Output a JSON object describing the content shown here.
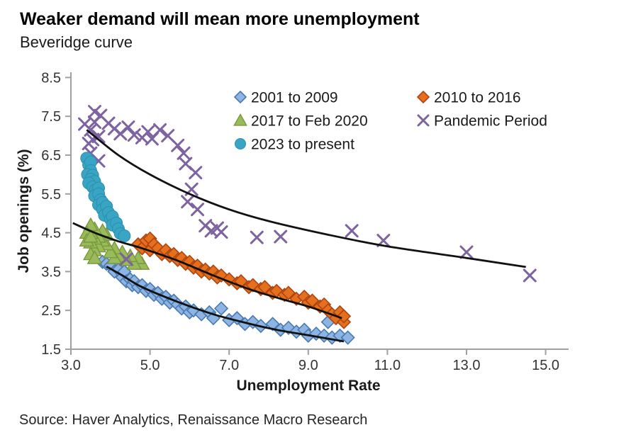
{
  "page": {
    "title": "Weaker demand will mean more unemployment",
    "subtitle": "Beveridge curve",
    "source": "Source: Haver Analytics, Renaissance Macro Research"
  },
  "chart_data": {
    "type": "scatter",
    "title": "Weaker demand will mean more unemployment",
    "subtitle": "Beveridge curve",
    "xlabel": "Unemployment Rate",
    "ylabel": "Job openings (%)",
    "xlim": [
      3.0,
      15.0
    ],
    "ylim": [
      1.5,
      8.5
    ],
    "x_ticks": [
      3,
      5,
      7,
      9,
      11,
      13,
      15
    ],
    "x_tick_labels": [
      "3.0",
      "5.0",
      "7.0",
      "9.0",
      "11.0",
      "13.0",
      "15.0"
    ],
    "y_ticks": [
      1.5,
      2.5,
      3.5,
      4.5,
      5.5,
      6.5,
      7.5,
      8.5
    ],
    "y_tick_labels": [
      "1.5",
      "2.5",
      "3.5",
      "4.5",
      "5.5",
      "6.5",
      "7.5",
      "8.5"
    ],
    "grid": false,
    "legend_position": "top-inside-two-columns",
    "axis_color": "#a0a0a0",
    "curve_color": "#111111",
    "series": [
      {
        "name": "2001 to 2009",
        "marker": "diamond",
        "fill": "#8EB4E3",
        "stroke": "#4879B0",
        "points": [
          [
            3.8,
            3.75
          ],
          [
            3.9,
            3.7
          ],
          [
            4.0,
            3.65
          ],
          [
            4.1,
            3.5
          ],
          [
            4.2,
            3.55
          ],
          [
            4.3,
            3.35
          ],
          [
            4.35,
            3.5
          ],
          [
            4.4,
            3.25
          ],
          [
            4.5,
            3.3
          ],
          [
            4.55,
            3.15
          ],
          [
            4.6,
            3.25
          ],
          [
            4.7,
            3.1
          ],
          [
            4.8,
            3.15
          ],
          [
            4.9,
            3.0
          ],
          [
            5.0,
            3.05
          ],
          [
            5.1,
            2.9
          ],
          [
            5.2,
            2.95
          ],
          [
            5.3,
            2.8
          ],
          [
            5.4,
            2.85
          ],
          [
            5.5,
            2.7
          ],
          [
            5.6,
            2.75
          ],
          [
            5.7,
            2.65
          ],
          [
            5.8,
            2.55
          ],
          [
            5.9,
            2.6
          ],
          [
            6.0,
            2.45
          ],
          [
            6.1,
            2.5
          ],
          [
            6.3,
            2.4
          ],
          [
            6.5,
            2.45
          ],
          [
            6.6,
            2.3
          ],
          [
            6.8,
            2.55
          ],
          [
            7.0,
            2.25
          ],
          [
            7.2,
            2.3
          ],
          [
            7.4,
            2.15
          ],
          [
            7.6,
            2.2
          ],
          [
            7.8,
            2.1
          ],
          [
            8.1,
            2.15
          ],
          [
            8.3,
            2.0
          ],
          [
            8.5,
            2.05
          ],
          [
            8.7,
            1.95
          ],
          [
            8.9,
            2.0
          ],
          [
            9.0,
            1.85
          ],
          [
            9.2,
            1.9
          ],
          [
            9.4,
            1.85
          ],
          [
            9.5,
            2.2
          ],
          [
            9.6,
            1.8
          ],
          [
            9.8,
            1.85
          ],
          [
            10.0,
            1.8
          ]
        ]
      },
      {
        "name": "2010 to 2016",
        "marker": "diamond",
        "fill": "#E4701E",
        "stroke": "#B04310",
        "points": [
          [
            4.7,
            4.2
          ],
          [
            4.8,
            4.1
          ],
          [
            4.9,
            4.3
          ],
          [
            5.0,
            4.35
          ],
          [
            5.0,
            4.05
          ],
          [
            5.1,
            4.2
          ],
          [
            5.2,
            4.1
          ],
          [
            5.3,
            3.95
          ],
          [
            5.4,
            4.05
          ],
          [
            5.5,
            3.9
          ],
          [
            5.6,
            3.95
          ],
          [
            5.7,
            3.8
          ],
          [
            5.8,
            3.85
          ],
          [
            5.9,
            3.7
          ],
          [
            6.0,
            3.75
          ],
          [
            6.1,
            3.6
          ],
          [
            6.2,
            3.65
          ],
          [
            6.3,
            3.5
          ],
          [
            6.4,
            3.55
          ],
          [
            6.5,
            3.45
          ],
          [
            6.6,
            3.5
          ],
          [
            6.7,
            3.35
          ],
          [
            6.8,
            3.4
          ],
          [
            7.0,
            3.3
          ],
          [
            7.2,
            3.2
          ],
          [
            7.3,
            3.25
          ],
          [
            7.5,
            3.1
          ],
          [
            7.6,
            3.15
          ],
          [
            7.8,
            3.05
          ],
          [
            7.9,
            3.1
          ],
          [
            8.1,
            2.95
          ],
          [
            8.2,
            3.0
          ],
          [
            8.4,
            2.9
          ],
          [
            8.5,
            2.95
          ],
          [
            8.7,
            2.8
          ],
          [
            8.9,
            2.85
          ],
          [
            9.0,
            2.7
          ],
          [
            9.1,
            2.75
          ],
          [
            9.3,
            2.6
          ],
          [
            9.4,
            2.65
          ],
          [
            9.5,
            2.5
          ],
          [
            9.6,
            2.4
          ],
          [
            9.7,
            2.3
          ],
          [
            9.8,
            2.45
          ],
          [
            9.9,
            2.2
          ],
          [
            9.9,
            2.35
          ]
        ]
      },
      {
        "name": "2017 to Feb 2020",
        "marker": "triangle",
        "fill": "#9ABB59",
        "stroke": "#79983F",
        "points": [
          [
            4.8,
            3.7
          ],
          [
            4.7,
            3.85
          ],
          [
            4.6,
            3.7
          ],
          [
            4.5,
            3.9
          ],
          [
            4.4,
            3.8
          ],
          [
            4.3,
            4.0
          ],
          [
            4.2,
            3.9
          ],
          [
            4.1,
            4.1
          ],
          [
            4.1,
            3.85
          ],
          [
            4.0,
            4.0
          ],
          [
            3.9,
            4.2
          ],
          [
            3.9,
            4.45
          ],
          [
            3.8,
            4.3
          ],
          [
            3.8,
            4.55
          ],
          [
            3.7,
            4.4
          ],
          [
            3.7,
            4.15
          ],
          [
            3.6,
            4.6
          ],
          [
            3.6,
            4.35
          ],
          [
            3.5,
            4.5
          ],
          [
            3.5,
            4.7
          ],
          [
            3.6,
            4.05
          ],
          [
            3.5,
            4.25
          ],
          [
            3.4,
            4.5
          ],
          [
            3.5,
            3.95
          ],
          [
            3.6,
            3.85
          ],
          [
            3.4,
            4.3
          ],
          [
            3.5,
            4.4
          ]
        ]
      },
      {
        "name": "Pandemic Period",
        "marker": "x",
        "fill": "#7E63A1",
        "stroke": "#7E63A1",
        "points": [
          [
            14.6,
            3.4
          ],
          [
            13.0,
            4.0
          ],
          [
            10.9,
            4.3
          ],
          [
            10.1,
            4.55
          ],
          [
            8.3,
            4.4
          ],
          [
            7.7,
            4.38
          ],
          [
            6.8,
            4.52
          ],
          [
            6.7,
            4.62
          ],
          [
            6.55,
            4.55
          ],
          [
            6.4,
            4.68
          ],
          [
            6.2,
            5.1
          ],
          [
            6.15,
            6.05
          ],
          [
            6.05,
            5.62
          ],
          [
            5.95,
            5.3
          ],
          [
            5.9,
            6.28
          ],
          [
            5.85,
            6.55
          ],
          [
            5.7,
            6.75
          ],
          [
            5.45,
            7.0
          ],
          [
            5.25,
            7.15
          ],
          [
            5.05,
            6.92
          ],
          [
            4.95,
            7.1
          ],
          [
            4.8,
            6.95
          ],
          [
            4.6,
            7.02
          ],
          [
            4.45,
            7.22
          ],
          [
            4.25,
            7.05
          ],
          [
            4.1,
            7.18
          ],
          [
            3.95,
            7.32
          ],
          [
            3.75,
            7.52
          ],
          [
            3.7,
            6.98
          ],
          [
            3.7,
            6.35
          ],
          [
            3.6,
            7.62
          ],
          [
            3.6,
            7.35
          ],
          [
            3.55,
            6.9
          ],
          [
            3.5,
            7.15
          ],
          [
            3.5,
            6.55
          ],
          [
            3.45,
            6.8
          ],
          [
            3.35,
            7.3
          ],
          [
            4.4,
            3.82
          ]
        ]
      },
      {
        "name": "2023 to present",
        "marker": "circle",
        "fill": "#38A5C5",
        "stroke": "#2E8FAC",
        "points": [
          [
            3.4,
            6.42
          ],
          [
            3.45,
            6.25
          ],
          [
            3.5,
            6.32
          ],
          [
            3.5,
            6.1
          ],
          [
            3.42,
            6.0
          ],
          [
            3.55,
            5.98
          ],
          [
            3.5,
            5.88
          ],
          [
            3.6,
            5.82
          ],
          [
            3.45,
            5.78
          ],
          [
            3.55,
            5.68
          ],
          [
            3.62,
            5.6
          ],
          [
            3.7,
            5.65
          ],
          [
            3.6,
            5.45
          ],
          [
            3.7,
            5.5
          ],
          [
            3.75,
            5.35
          ],
          [
            3.7,
            5.22
          ],
          [
            3.8,
            5.28
          ],
          [
            3.8,
            5.1
          ],
          [
            3.9,
            5.18
          ],
          [
            3.85,
            4.95
          ],
          [
            3.95,
            5.02
          ],
          [
            4.0,
            4.85
          ],
          [
            4.05,
            4.92
          ],
          [
            4.05,
            4.7
          ],
          [
            4.15,
            4.75
          ],
          [
            4.2,
            4.6
          ],
          [
            4.25,
            4.48
          ],
          [
            4.35,
            4.42
          ]
        ]
      }
    ],
    "fitted_curves": [
      {
        "for": "Pandemic Period",
        "points": [
          [
            3.4,
            7.15
          ],
          [
            4.2,
            6.5
          ],
          [
            5.0,
            6.0
          ],
          [
            6.0,
            5.5
          ],
          [
            7.0,
            5.1
          ],
          [
            8.0,
            4.8
          ],
          [
            9.5,
            4.45
          ],
          [
            11.0,
            4.15
          ],
          [
            13.0,
            3.85
          ],
          [
            14.5,
            3.62
          ]
        ]
      },
      {
        "for": "2010 to 2016",
        "points": [
          [
            3.05,
            4.75
          ],
          [
            3.6,
            4.5
          ],
          [
            4.2,
            4.28
          ],
          [
            4.8,
            4.1
          ],
          [
            5.7,
            3.78
          ],
          [
            6.6,
            3.4
          ],
          [
            7.5,
            3.05
          ],
          [
            8.3,
            2.8
          ],
          [
            9.0,
            2.6
          ],
          [
            9.85,
            2.3
          ]
        ]
      },
      {
        "for": "2001 to 2009",
        "points": [
          [
            3.9,
            3.63
          ],
          [
            4.3,
            3.4
          ],
          [
            4.8,
            3.1
          ],
          [
            5.7,
            2.72
          ],
          [
            6.6,
            2.4
          ],
          [
            7.5,
            2.16
          ],
          [
            8.2,
            2.0
          ],
          [
            9.0,
            1.86
          ],
          [
            9.9,
            1.7
          ]
        ]
      }
    ]
  }
}
